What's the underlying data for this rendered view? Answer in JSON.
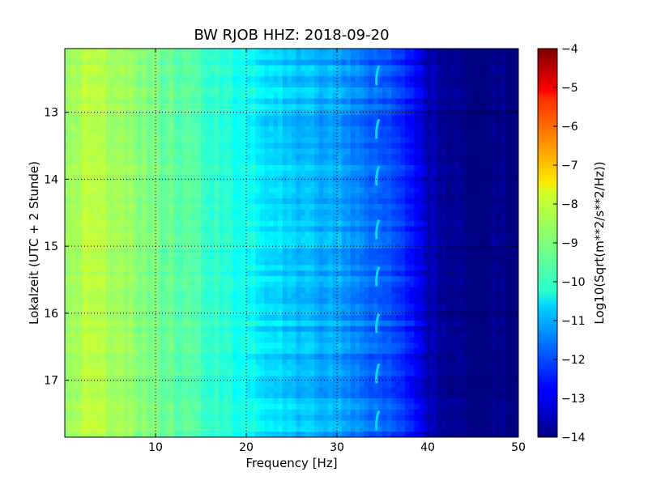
{
  "chart_data": {
    "type": "heatmap",
    "title": "BW RJOB HHZ: 2018-09-20",
    "xlabel": "Frequency [Hz]",
    "ylabel": "Lokalzeit (UTC + 2 Stunde)",
    "xlim": [
      0,
      50
    ],
    "ylim": [
      12.05,
      17.85
    ],
    "y_inverted": true,
    "x_ticks": [
      10,
      20,
      30,
      40,
      50
    ],
    "y_ticks": [
      13,
      14,
      15,
      16,
      17
    ],
    "grid": true,
    "colormap": "jet",
    "colorbar": {
      "label": "Log10(Sqrt(m**2/s**2/Hz))",
      "range": [
        -14,
        -4
      ],
      "ticks": [
        -4,
        -5,
        -6,
        -7,
        -8,
        -9,
        -10,
        -11,
        -12,
        -13,
        -14
      ]
    },
    "spectrum_profile": {
      "frequency_hz": [
        0,
        2,
        5,
        10,
        15,
        20,
        25,
        30,
        35,
        38,
        40,
        42,
        50
      ],
      "log10_amplitude": [
        -9.0,
        -8.4,
        -8.6,
        -9.1,
        -9.5,
        -10.2,
        -10.8,
        -11.2,
        -11.8,
        -12.6,
        -13.3,
        -13.9,
        -14.0
      ]
    },
    "tonal_feature": {
      "frequency_hz": 34.5,
      "log10_amplitude": -10.6,
      "times": [
        12.45,
        13.25,
        13.95,
        14.75,
        15.45,
        16.15,
        16.9,
        17.6
      ]
    }
  }
}
